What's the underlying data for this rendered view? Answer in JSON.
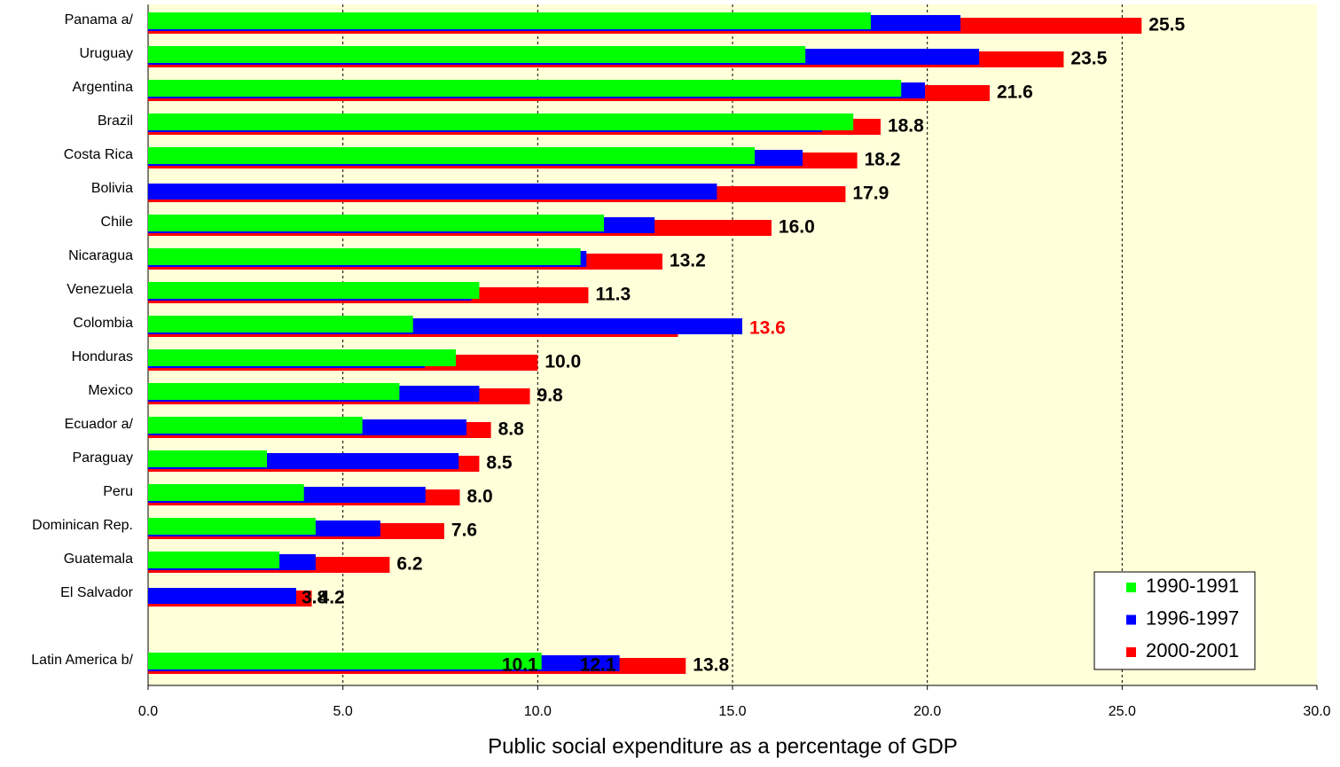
{
  "chart_data": {
    "type": "bar",
    "orientation": "horizontal",
    "xlabel": "Public social expenditure as a percentage of GDP",
    "categories": [
      "Panama a/",
      "Uruguay",
      "Argentina",
      "Brazil",
      "Costa Rica",
      "Bolivia",
      "Chile",
      "Nicaragua",
      "Venezuela",
      "Colombia",
      "Honduras",
      "Mexico",
      "Ecuador a/",
      "Paraguay",
      "Peru",
      "Dominican Rep.",
      "Guatemala",
      "El Salvador",
      null,
      "Latin America b/"
    ],
    "series": [
      {
        "name": "1990-1991",
        "color": "#00ff00",
        "values": [
          18.55,
          16.87,
          19.33,
          18.1,
          15.57,
          null,
          11.7,
          11.1,
          8.5,
          6.8,
          7.9,
          6.45,
          5.5,
          3.05,
          4.0,
          4.3,
          3.37,
          null,
          null,
          10.1
        ],
        "value_labels": [
          null,
          null,
          null,
          null,
          null,
          null,
          null,
          null,
          null,
          null,
          null,
          null,
          null,
          null,
          null,
          null,
          null,
          null,
          null,
          "10.1"
        ]
      },
      {
        "name": "1996-1997",
        "color": "#0000ff",
        "values": [
          20.85,
          21.33,
          19.94,
          17.3,
          16.8,
          14.6,
          13.0,
          11.25,
          8.3,
          15.25,
          7.1,
          8.5,
          8.17,
          7.97,
          7.12,
          5.96,
          4.3,
          3.8,
          null,
          12.1
        ],
        "value_labels": [
          null,
          null,
          null,
          null,
          null,
          null,
          null,
          null,
          null,
          null,
          null,
          null,
          null,
          null,
          null,
          null,
          null,
          "3.8",
          null,
          "12.1"
        ]
      },
      {
        "name": "2000-2001",
        "color": "#ff0000",
        "values": [
          25.5,
          23.5,
          21.6,
          18.8,
          18.2,
          17.9,
          16.0,
          13.2,
          11.3,
          13.6,
          10.0,
          9.8,
          8.8,
          8.5,
          8.0,
          7.6,
          6.2,
          4.2,
          null,
          13.8
        ],
        "value_labels": [
          "25.5",
          "23.5",
          "21.6",
          "18.8",
          "18.2",
          "17.9",
          "16.0",
          "13.2",
          "11.3",
          "13.6",
          "10.0",
          "9.8",
          "8.8",
          "8.5",
          "8.0",
          "7.6",
          "6.2",
          "4.2",
          null,
          "13.8"
        ],
        "label_colors": [
          "#000000",
          "#000000",
          "#000000",
          "#000000",
          "#000000",
          "#000000",
          "#000000",
          "#000000",
          "#000000",
          "#ff0000",
          "#000000",
          "#000000",
          "#000000",
          "#000000",
          "#000000",
          "#000000",
          "#000000",
          "#000000",
          null,
          "#000000"
        ]
      }
    ],
    "xlim": [
      0,
      30
    ],
    "xticks": [
      {
        "value": 0,
        "label": "0.0"
      },
      {
        "value": 5,
        "label": "5.0"
      },
      {
        "value": 10,
        "label": "10.0"
      },
      {
        "value": 15,
        "label": "15.0"
      },
      {
        "value": 20,
        "label": "20.0"
      },
      {
        "value": 25,
        "label": "25.0"
      },
      {
        "value": 30,
        "label": "30.0"
      }
    ],
    "grid": true,
    "legend": "lower right",
    "background": "#ffffd9"
  }
}
